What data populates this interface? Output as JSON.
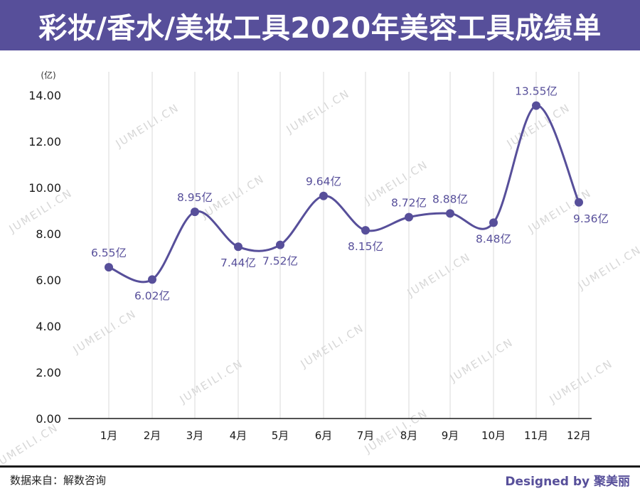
{
  "header": {
    "title": "彩妆/香水/美妆工具2020年美容工具成绩单"
  },
  "footer": {
    "source": "数据来自：解数咨询",
    "credit": "Designed by 聚美丽"
  },
  "watermark": {
    "text": "JUMEILI.CN"
  },
  "colors": {
    "accent": "#574f9a",
    "series": "#574f9a",
    "gridline": "#d9d9d9"
  },
  "chart_data": {
    "type": "line",
    "smooth": true,
    "unit_label": "(亿)",
    "categories": [
      "1月",
      "2月",
      "3月",
      "4月",
      "5月",
      "6月",
      "7月",
      "8月",
      "9月",
      "10月",
      "11月",
      "12月"
    ],
    "series": [
      {
        "values": [
          6.55,
          6.02,
          8.95,
          7.44,
          7.52,
          9.64,
          8.15,
          8.72,
          8.88,
          8.48,
          13.55,
          9.36
        ],
        "data_labels": [
          "6.55亿",
          "6.02亿",
          "8.95亿",
          "7.44亿",
          "7.52亿",
          "9.64亿",
          "8.15亿",
          "8.72亿",
          "8.88亿",
          "8.48亿",
          "13.55亿",
          "9.36亿"
        ]
      }
    ],
    "y_ticks": [
      "0.00",
      "2.00",
      "4.00",
      "6.00",
      "8.00",
      "10.00",
      "12.00",
      "14.00"
    ],
    "ylim": [
      0,
      14
    ],
    "grid": "vertical",
    "legend": "none"
  }
}
